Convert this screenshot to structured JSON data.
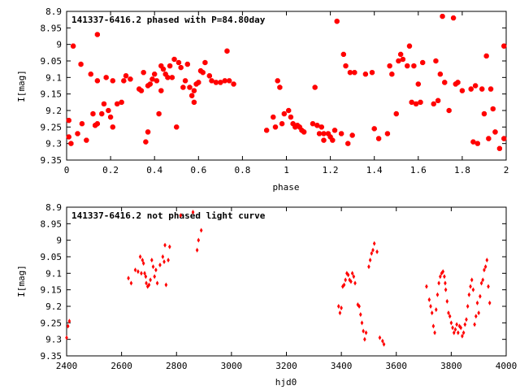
{
  "chart_data": [
    {
      "type": "scatter",
      "title": "141337-6416.2 phased with P=84.80day",
      "xlabel": "phase",
      "ylabel": "I[mag]",
      "xlim": [
        0,
        2
      ],
      "ylim": [
        8.9,
        9.35
      ],
      "y_inverted": true,
      "grid": false,
      "marker_color": "#ff0000",
      "xticks": [
        "0",
        "0.2",
        "0.4",
        "0.6",
        "0.8",
        "1",
        "1.2",
        "1.4",
        "1.6",
        "1.8",
        "2"
      ],
      "yticks": [
        "8.9",
        "8.95",
        "9",
        "9.05",
        "9.1",
        "9.15",
        "9.2",
        "9.25",
        "9.3",
        "9.35"
      ],
      "series": [
        {
          "points": [
            [
              0.01,
              9.23
            ],
            [
              0.01,
              9.28
            ],
            [
              0.02,
              9.3
            ],
            [
              0.03,
              9.005
            ],
            [
              0.05,
              9.27
            ],
            [
              0.065,
              9.06
            ],
            [
              0.07,
              9.24
            ],
            [
              0.09,
              9.29
            ],
            [
              0.11,
              9.09
            ],
            [
              0.12,
              9.21
            ],
            [
              0.13,
              9.245
            ],
            [
              0.14,
              9.24
            ],
            [
              0.14,
              9.11
            ],
            [
              0.14,
              8.97
            ],
            [
              0.16,
              9.21
            ],
            [
              0.17,
              9.18
            ],
            [
              0.18,
              9.1
            ],
            [
              0.19,
              9.2
            ],
            [
              0.2,
              9.22
            ],
            [
              0.21,
              9.25
            ],
            [
              0.21,
              9.11
            ],
            [
              0.23,
              9.18
            ],
            [
              0.25,
              9.175
            ],
            [
              0.26,
              9.11
            ],
            [
              0.27,
              9.095
            ],
            [
              0.29,
              9.105
            ],
            [
              0.33,
              9.135
            ],
            [
              0.34,
              9.14
            ],
            [
              0.35,
              9.085
            ],
            [
              0.36,
              9.295
            ],
            [
              0.37,
              9.265
            ],
            [
              0.37,
              9.125
            ],
            [
              0.38,
              9.12
            ],
            [
              0.39,
              9.105
            ],
            [
              0.4,
              9.09
            ],
            [
              0.41,
              9.11
            ],
            [
              0.42,
              9.21
            ],
            [
              0.43,
              9.14
            ],
            [
              0.43,
              9.065
            ],
            [
              0.44,
              9.075
            ],
            [
              0.45,
              9.09
            ],
            [
              0.46,
              9.1
            ],
            [
              0.47,
              9.065
            ],
            [
              0.48,
              9.1
            ],
            [
              0.49,
              9.045
            ],
            [
              0.5,
              9.25
            ],
            [
              0.51,
              9.055
            ],
            [
              0.52,
              9.07
            ],
            [
              0.53,
              9.13
            ],
            [
              0.54,
              9.11
            ],
            [
              0.55,
              9.06
            ],
            [
              0.56,
              9.13
            ],
            [
              0.57,
              9.155
            ],
            [
              0.58,
              9.14
            ],
            [
              0.58,
              9.175
            ],
            [
              0.59,
              9.12
            ],
            [
              0.6,
              9.115
            ],
            [
              0.61,
              9.08
            ],
            [
              0.62,
              9.085
            ],
            [
              0.63,
              9.055
            ],
            [
              0.65,
              9.095
            ],
            [
              0.66,
              9.11
            ],
            [
              0.68,
              9.115
            ],
            [
              0.7,
              9.115
            ],
            [
              0.72,
              9.11
            ],
            [
              0.73,
              9.02
            ],
            [
              0.74,
              9.11
            ],
            [
              0.76,
              9.12
            ],
            [
              0.91,
              9.26
            ],
            [
              0.94,
              9.22
            ],
            [
              0.95,
              9.25
            ],
            [
              0.96,
              9.11
            ],
            [
              0.97,
              9.13
            ],
            [
              0.98,
              9.24
            ],
            [
              0.99,
              9.21
            ],
            [
              1.01,
              9.2
            ],
            [
              1.02,
              9.22
            ],
            [
              1.03,
              9.24
            ],
            [
              1.04,
              9.25
            ],
            [
              1.05,
              9.245
            ],
            [
              1.06,
              9.25
            ],
            [
              1.07,
              9.26
            ],
            [
              1.08,
              9.265
            ],
            [
              1.12,
              9.24
            ],
            [
              1.13,
              9.13
            ],
            [
              1.14,
              9.245
            ],
            [
              1.15,
              9.27
            ],
            [
              1.16,
              9.25
            ],
            [
              1.17,
              9.27
            ],
            [
              1.17,
              9.29
            ],
            [
              1.19,
              9.27
            ],
            [
              1.2,
              9.28
            ],
            [
              1.21,
              9.29
            ],
            [
              1.22,
              9.26
            ],
            [
              1.23,
              8.93
            ],
            [
              1.25,
              9.27
            ],
            [
              1.26,
              9.03
            ],
            [
              1.27,
              9.065
            ],
            [
              1.28,
              9.3
            ],
            [
              1.29,
              9.085
            ],
            [
              1.3,
              9.275
            ],
            [
              1.31,
              9.085
            ],
            [
              1.36,
              9.09
            ],
            [
              1.39,
              9.085
            ],
            [
              1.4,
              9.255
            ],
            [
              1.42,
              9.285
            ],
            [
              1.46,
              9.27
            ],
            [
              1.47,
              9.065
            ],
            [
              1.48,
              9.09
            ],
            [
              1.5,
              9.21
            ],
            [
              1.51,
              9.05
            ],
            [
              1.52,
              9.03
            ],
            [
              1.53,
              9.045
            ],
            [
              1.55,
              9.065
            ],
            [
              1.56,
              9.005
            ],
            [
              1.57,
              9.175
            ],
            [
              1.58,
              9.065
            ],
            [
              1.59,
              9.18
            ],
            [
              1.6,
              9.12
            ],
            [
              1.61,
              9.175
            ],
            [
              1.62,
              9.055
            ],
            [
              1.67,
              9.18
            ],
            [
              1.68,
              9.05
            ],
            [
              1.69,
              9.17
            ],
            [
              1.7,
              9.09
            ],
            [
              1.71,
              8.915
            ],
            [
              1.72,
              9.115
            ],
            [
              1.74,
              9.2
            ],
            [
              1.76,
              8.92
            ],
            [
              1.77,
              9.12
            ],
            [
              1.78,
              9.115
            ],
            [
              1.8,
              9.14
            ],
            [
              1.84,
              9.135
            ],
            [
              1.85,
              9.295
            ],
            [
              1.86,
              9.125
            ],
            [
              1.87,
              9.3
            ],
            [
              1.89,
              9.135
            ],
            [
              1.9,
              9.21
            ],
            [
              1.91,
              9.035
            ],
            [
              1.92,
              9.285
            ],
            [
              1.93,
              9.135
            ],
            [
              1.94,
              9.195
            ],
            [
              1.95,
              9.265
            ],
            [
              1.97,
              9.315
            ],
            [
              1.99,
              9.005
            ],
            [
              1.99,
              9.285
            ]
          ]
        }
      ]
    },
    {
      "type": "scatter",
      "title": "141337-6416.2 not phased light curve",
      "xlabel": "hjd0",
      "ylabel": "I[mag]",
      "xlim": [
        2400,
        4000
      ],
      "ylim": [
        8.9,
        9.35
      ],
      "y_inverted": true,
      "grid": false,
      "marker_color": "#ff0000",
      "xticks": [
        "2400",
        "2600",
        "2800",
        "3000",
        "3200",
        "3400",
        "3600",
        "3800",
        "4000"
      ],
      "yticks": [
        "8.9",
        "8.95",
        "9",
        "9.05",
        "9.1",
        "9.15",
        "9.2",
        "9.25",
        "9.3",
        "9.35"
      ],
      "series": [
        {
          "points": [
            [
              2400,
              9.295
            ],
            [
              2405,
              9.26
            ],
            [
              2410,
              9.245
            ],
            [
              2625,
              9.115
            ],
            [
              2635,
              9.13
            ],
            [
              2650,
              9.09
            ],
            [
              2660,
              9.095
            ],
            [
              2668,
              9.05
            ],
            [
              2672,
              9.1
            ],
            [
              2676,
              9.06
            ],
            [
              2680,
              9.07
            ],
            [
              2684,
              9.1
            ],
            [
              2688,
              9.11
            ],
            [
              2690,
              9.13
            ],
            [
              2695,
              9.14
            ],
            [
              2700,
              9.135
            ],
            [
              2705,
              9.12
            ],
            [
              2710,
              9.06
            ],
            [
              2715,
              9.08
            ],
            [
              2720,
              9.11
            ],
            [
              2725,
              9.09
            ],
            [
              2730,
              9.13
            ],
            [
              2740,
              9.075
            ],
            [
              2750,
              9.05
            ],
            [
              2755,
              9.065
            ],
            [
              2758,
              9.015
            ],
            [
              2762,
              9.135
            ],
            [
              2770,
              9.06
            ],
            [
              2775,
              9.02
            ],
            [
              2815,
              8.925
            ],
            [
              2860,
              8.915
            ],
            [
              2875,
              9.03
            ],
            [
              2880,
              9.0
            ],
            [
              2890,
              8.97
            ],
            [
              3390,
              9.2
            ],
            [
              3395,
              9.22
            ],
            [
              3400,
              9.205
            ],
            [
              3405,
              9.14
            ],
            [
              3410,
              9.135
            ],
            [
              3415,
              9.12
            ],
            [
              3420,
              9.1
            ],
            [
              3425,
              9.105
            ],
            [
              3430,
              9.12
            ],
            [
              3435,
              9.125
            ],
            [
              3440,
              9.1
            ],
            [
              3445,
              9.11
            ],
            [
              3450,
              9.13
            ],
            [
              3460,
              9.195
            ],
            [
              3465,
              9.2
            ],
            [
              3470,
              9.225
            ],
            [
              3475,
              9.25
            ],
            [
              3480,
              9.275
            ],
            [
              3485,
              9.3
            ],
            [
              3490,
              9.28
            ],
            [
              3500,
              9.08
            ],
            [
              3505,
              9.06
            ],
            [
              3510,
              9.04
            ],
            [
              3515,
              9.03
            ],
            [
              3520,
              9.01
            ],
            [
              3530,
              9.035
            ],
            [
              3540,
              9.295
            ],
            [
              3550,
              9.305
            ],
            [
              3555,
              9.315
            ],
            [
              3710,
              9.14
            ],
            [
              3720,
              9.18
            ],
            [
              3725,
              9.2
            ],
            [
              3730,
              9.22
            ],
            [
              3735,
              9.26
            ],
            [
              3740,
              9.28
            ],
            [
              3745,
              9.21
            ],
            [
              3750,
              9.165
            ],
            [
              3755,
              9.13
            ],
            [
              3760,
              9.11
            ],
            [
              3765,
              9.1
            ],
            [
              3770,
              9.095
            ],
            [
              3775,
              9.11
            ],
            [
              3778,
              9.13
            ],
            [
              3780,
              9.15
            ],
            [
              3785,
              9.185
            ],
            [
              3790,
              9.22
            ],
            [
              3795,
              9.23
            ],
            [
              3800,
              9.25
            ],
            [
              3805,
              9.265
            ],
            [
              3810,
              9.28
            ],
            [
              3815,
              9.27
            ],
            [
              3820,
              9.255
            ],
            [
              3825,
              9.28
            ],
            [
              3830,
              9.26
            ],
            [
              3835,
              9.265
            ],
            [
              3840,
              9.29
            ],
            [
              3845,
              9.28
            ],
            [
              3850,
              9.255
            ],
            [
              3855,
              9.24
            ],
            [
              3860,
              9.2
            ],
            [
              3865,
              9.165
            ],
            [
              3870,
              9.14
            ],
            [
              3875,
              9.12
            ],
            [
              3880,
              9.15
            ],
            [
              3885,
              9.255
            ],
            [
              3890,
              9.23
            ],
            [
              3895,
              9.19
            ],
            [
              3900,
              9.22
            ],
            [
              3905,
              9.17
            ],
            [
              3910,
              9.13
            ],
            [
              3915,
              9.12
            ],
            [
              3920,
              9.09
            ],
            [
              3925,
              9.08
            ],
            [
              3930,
              9.06
            ],
            [
              3935,
              9.14
            ],
            [
              3940,
              9.19
            ]
          ]
        }
      ]
    }
  ]
}
